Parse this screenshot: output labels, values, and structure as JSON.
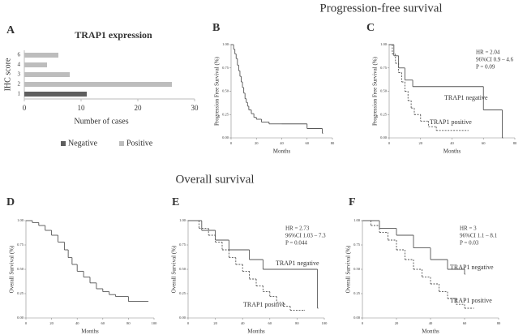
{
  "section_titles": [
    "Progression-free survival",
    "Overall survival"
  ],
  "chart_data": [
    {
      "type": "bar",
      "panel": "A",
      "title": "TRAP1 expression",
      "x_label": "Number of cases",
      "y_label": "IHC score",
      "categories": [
        "1",
        "2",
        "3",
        "4",
        "6"
      ],
      "series": [
        {
          "name": "Negative",
          "color": "#5f5f5f",
          "values": [
            11,
            null,
            null,
            null,
            null
          ]
        },
        {
          "name": "Positive",
          "color": "#bdbdbd",
          "values": [
            null,
            26,
            8,
            4,
            6
          ]
        }
      ],
      "xlim": [
        0,
        30
      ],
      "xticks": [
        0,
        10,
        20,
        30
      ]
    },
    {
      "type": "step",
      "panel": "B",
      "x_label": "Months",
      "y_label": "Progression Free Survival (%)",
      "xlim": [
        0,
        80
      ],
      "xticks": [
        0,
        20,
        40,
        60,
        80
      ],
      "ylim": [
        0,
        1
      ],
      "yticks": [
        {
          "value": 0,
          "label": "0.00"
        },
        {
          "value": 0.25,
          "label": "0.25"
        },
        {
          "value": 0.5,
          "label": "0.50"
        },
        {
          "value": 0.75,
          "label": "0.75"
        },
        {
          "value": 1,
          "label": "1.00"
        }
      ],
      "series": [
        {
          "color": "#555555",
          "dash": false,
          "x": [
            0,
            2,
            3,
            4,
            5,
            6,
            7,
            8,
            9,
            10,
            11,
            12,
            13,
            14,
            16,
            18,
            20,
            24,
            30,
            40,
            60,
            72
          ],
          "y": [
            1,
            0.95,
            0.9,
            0.85,
            0.78,
            0.72,
            0.66,
            0.6,
            0.54,
            0.48,
            0.42,
            0.38,
            0.34,
            0.3,
            0.26,
            0.22,
            0.2,
            0.17,
            0.15,
            0.15,
            0.1,
            0.05
          ]
        }
      ]
    },
    {
      "type": "step",
      "panel": "C",
      "x_label": "Months",
      "y_label": "Progression Free Survival (%)",
      "annotations": [
        "HR = 2.04",
        "96%CI 0.9 – 4.6",
        "P = 0.09"
      ],
      "xlim": [
        0,
        80
      ],
      "xticks": [
        0,
        20,
        40,
        60,
        80
      ],
      "ylim": [
        0,
        1
      ],
      "yticks": [
        {
          "value": 0,
          "label": "0.00"
        },
        {
          "value": 0.25,
          "label": "0.25"
        },
        {
          "value": 0.5,
          "label": "0.50"
        },
        {
          "value": 0.75,
          "label": "0.75"
        },
        {
          "value": 1,
          "label": "1.00"
        }
      ],
      "series": [
        {
          "name": "TRAP1 negative",
          "color": "#555555",
          "dash": false,
          "x": [
            0,
            3,
            6,
            10,
            15,
            60,
            72
          ],
          "y": [
            1,
            0.88,
            0.75,
            0.62,
            0.55,
            0.3,
            0
          ]
        },
        {
          "name": "TRAP1 positive",
          "color": "#555555",
          "dash": true,
          "x": [
            0,
            2,
            4,
            6,
            8,
            10,
            12,
            14,
            16,
            20,
            25,
            30,
            50
          ],
          "y": [
            1,
            0.9,
            0.8,
            0.7,
            0.6,
            0.5,
            0.4,
            0.32,
            0.25,
            0.18,
            0.12,
            0.08,
            0.08
          ]
        }
      ]
    },
    {
      "type": "step",
      "panel": "D",
      "x_label": "Months",
      "y_label": "Overall Survival (%)",
      "xlim": [
        0,
        100
      ],
      "xticks": [
        0,
        20,
        40,
        60,
        80,
        100
      ],
      "ylim": [
        0,
        1
      ],
      "yticks": [
        {
          "value": 0,
          "label": "0.00"
        },
        {
          "value": 0.25,
          "label": "0.25"
        },
        {
          "value": 0.5,
          "label": "0.50"
        },
        {
          "value": 0.75,
          "label": "0.75"
        },
        {
          "value": 1,
          "label": "1.00"
        }
      ],
      "series": [
        {
          "color": "#555555",
          "dash": false,
          "x": [
            0,
            5,
            10,
            15,
            20,
            25,
            30,
            33,
            36,
            40,
            45,
            50,
            55,
            60,
            65,
            70,
            80,
            95
          ],
          "y": [
            1,
            0.98,
            0.95,
            0.9,
            0.85,
            0.78,
            0.7,
            0.62,
            0.55,
            0.48,
            0.42,
            0.36,
            0.3,
            0.27,
            0.24,
            0.22,
            0.17,
            0.17
          ]
        }
      ]
    },
    {
      "type": "step",
      "panel": "E",
      "x_label": "Months",
      "y_label": "Overall Survival (%)",
      "annotations": [
        "HR = 2.73",
        "96%CI 1.03 – 7.3",
        "P = 0.044"
      ],
      "xlim": [
        0,
        100
      ],
      "xticks": [
        0,
        20,
        40,
        60,
        80,
        100
      ],
      "ylim": [
        0,
        1
      ],
      "yticks": [
        {
          "value": 0,
          "label": "0.00"
        },
        {
          "value": 0.25,
          "label": "0.25"
        },
        {
          "value": 0.5,
          "label": "0.50"
        },
        {
          "value": 0.75,
          "label": "0.75"
        },
        {
          "value": 1,
          "label": "1.00"
        }
      ],
      "series": [
        {
          "name": "TRAP1 negative",
          "color": "#555555",
          "dash": false,
          "x": [
            0,
            10,
            20,
            30,
            45,
            55,
            95
          ],
          "y": [
            1,
            0.9,
            0.8,
            0.7,
            0.6,
            0.5,
            0.1
          ]
        },
        {
          "name": "TRAP1 positive",
          "color": "#555555",
          "dash": true,
          "x": [
            0,
            8,
            15,
            20,
            25,
            30,
            35,
            40,
            45,
            50,
            55,
            60,
            65,
            70,
            75,
            85
          ],
          "y": [
            1,
            0.92,
            0.85,
            0.78,
            0.7,
            0.62,
            0.55,
            0.48,
            0.4,
            0.33,
            0.27,
            0.22,
            0.16,
            0.12,
            0.08,
            0.08
          ]
        }
      ]
    },
    {
      "type": "step",
      "panel": "F",
      "x_label": "Months",
      "y_label": "Overall Survival (%)",
      "annotations": [
        "HR = 3",
        "96%CI 1.1 – 8.1",
        "P = 0.03"
      ],
      "xlim": [
        0,
        80
      ],
      "xticks": [
        0,
        20,
        40,
        60,
        80
      ],
      "ylim": [
        0,
        1
      ],
      "yticks": [
        {
          "value": 0,
          "label": "0.00"
        },
        {
          "value": 0.25,
          "label": "0.25"
        },
        {
          "value": 0.5,
          "label": "0.50"
        },
        {
          "value": 0.75,
          "label": "0.75"
        },
        {
          "value": 1,
          "label": "1.00"
        }
      ],
      "series": [
        {
          "name": "TRAP1 negative",
          "color": "#555555",
          "dash": false,
          "x": [
            0,
            10,
            20,
            30,
            40,
            50,
            60
          ],
          "y": [
            1,
            0.92,
            0.85,
            0.72,
            0.6,
            0.5,
            0.45
          ]
        },
        {
          "name": "TRAP1 positive",
          "color": "#555555",
          "dash": true,
          "x": [
            0,
            5,
            10,
            15,
            20,
            25,
            30,
            35,
            40,
            45,
            50,
            55,
            60,
            65
          ],
          "y": [
            1,
            0.95,
            0.88,
            0.8,
            0.7,
            0.6,
            0.5,
            0.42,
            0.35,
            0.27,
            0.2,
            0.14,
            0.1,
            0.1
          ]
        }
      ]
    }
  ]
}
